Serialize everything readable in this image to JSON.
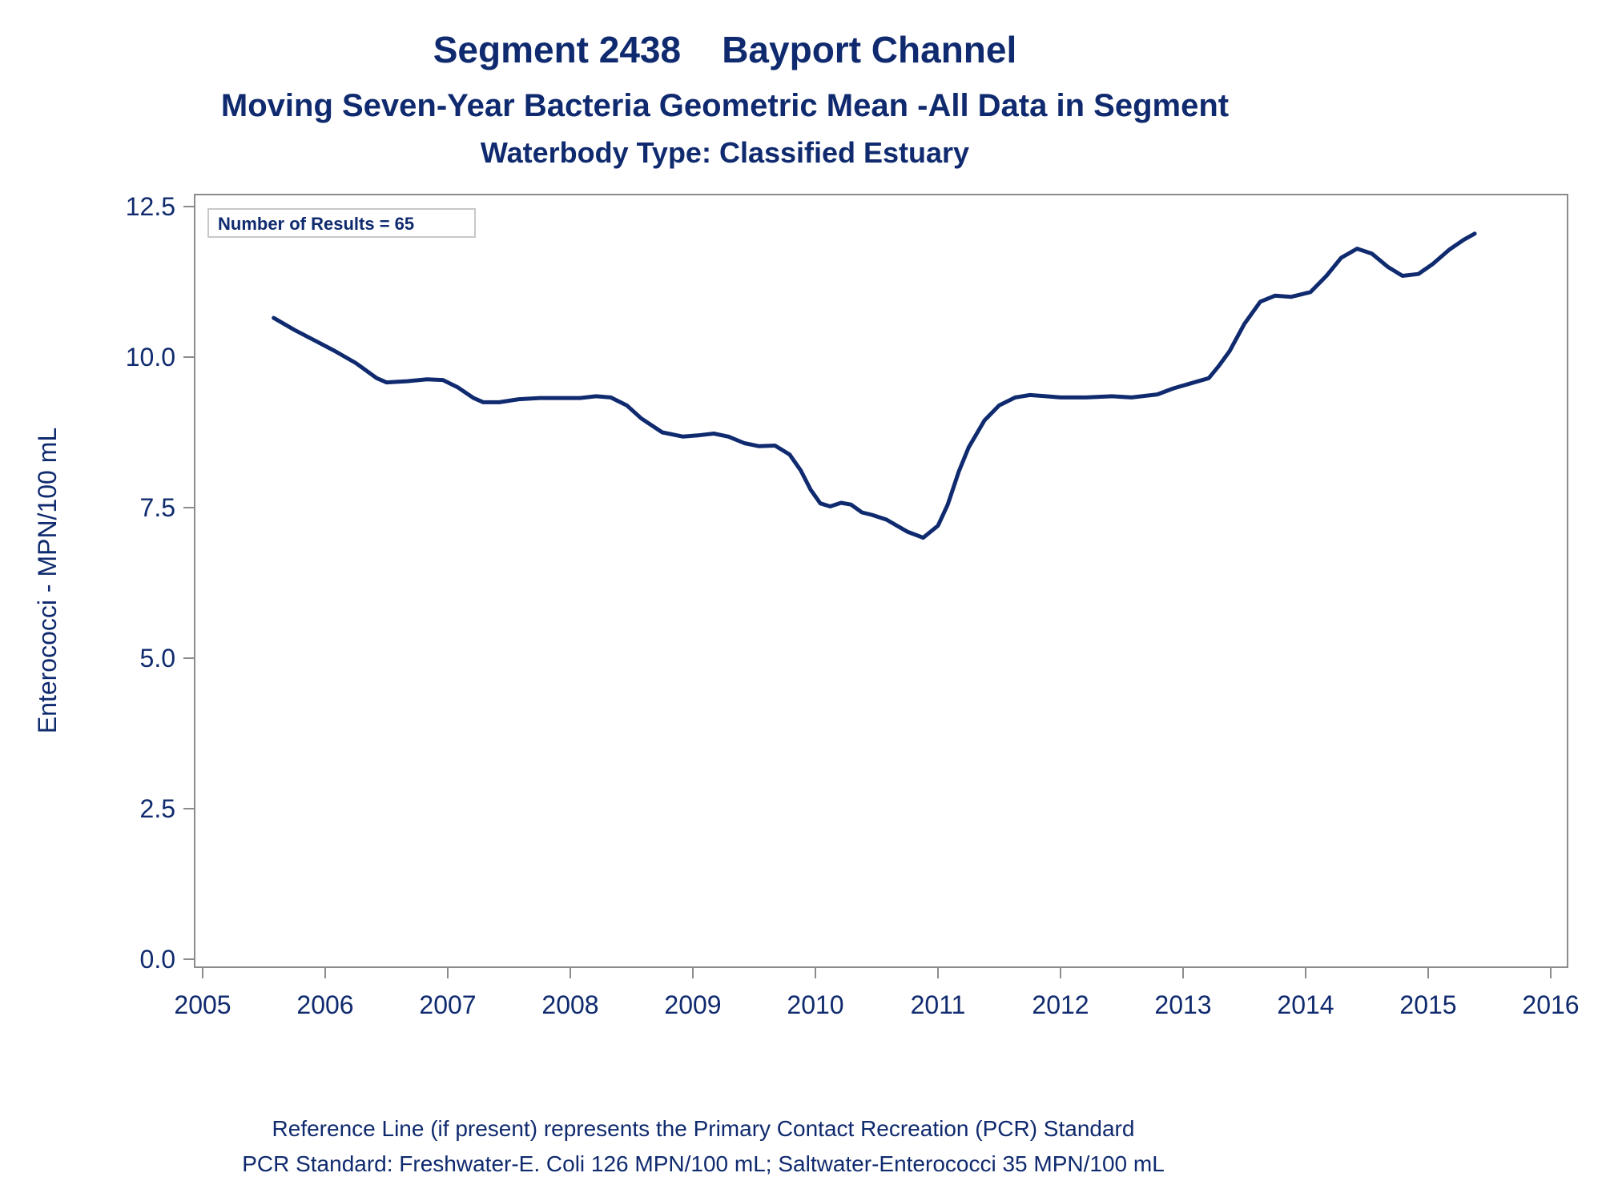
{
  "chart_data": {
    "type": "line",
    "title": "Segment 2438    Bayport Channel",
    "subtitle": "Moving Seven-Year Bacteria Geometric Mean -All Data in Segment",
    "subtitle2": "Waterbody Type: Classified Estuary",
    "xlabel": "",
    "ylabel": "Enterococci - MPN/100 mL",
    "xlim": [
      2005,
      2016
    ],
    "ylim": [
      0,
      12.5
    ],
    "x_ticks": [
      "2005",
      "2006",
      "2007",
      "2008",
      "2009",
      "2010",
      "2011",
      "2012",
      "2013",
      "2014",
      "2015",
      "2016"
    ],
    "y_ticks": [
      "0.0",
      "2.5",
      "5.0",
      "7.5",
      "10.0",
      "12.5"
    ],
    "annotation": "Number of Results = 65",
    "grid": false,
    "line_color": "#0f2a6e",
    "series": [
      {
        "x": [
          2005.58,
          2005.75,
          2005.92,
          2006.08,
          2006.25,
          2006.42,
          2006.5,
          2006.67,
          2006.83,
          2006.96,
          2007.08,
          2007.21,
          2007.29,
          2007.42,
          2007.58,
          2007.75,
          2007.92,
          2008.08,
          2008.21,
          2008.33,
          2008.46,
          2008.58,
          2008.75,
          2008.92,
          2009.04,
          2009.17,
          2009.29,
          2009.42,
          2009.54,
          2009.67,
          2009.79,
          2009.88,
          2009.96,
          2010.04,
          2010.12,
          2010.21,
          2010.29,
          2010.38,
          2010.46,
          2010.58,
          2010.75,
          2010.88,
          2011.0,
          2011.08,
          2011.17,
          2011.25,
          2011.38,
          2011.5,
          2011.63,
          2011.75,
          2011.88,
          2012.0,
          2012.21,
          2012.42,
          2012.58,
          2012.79,
          2012.92,
          2013.04,
          2013.21,
          2013.29,
          2013.38,
          2013.5,
          2013.63,
          2013.75,
          2013.88,
          2014.04,
          2014.17,
          2014.29,
          2014.42,
          2014.54,
          2014.67,
          2014.79,
          2014.92,
          2015.04,
          2015.17,
          2015.29,
          2015.38
        ],
        "values": [
          10.65,
          10.45,
          10.27,
          10.1,
          9.9,
          9.65,
          9.58,
          9.6,
          9.63,
          9.62,
          9.5,
          9.32,
          9.25,
          9.25,
          9.3,
          9.32,
          9.32,
          9.32,
          9.35,
          9.33,
          9.2,
          8.98,
          8.75,
          8.68,
          8.7,
          8.73,
          8.68,
          8.57,
          8.52,
          8.53,
          8.38,
          8.12,
          7.8,
          7.57,
          7.52,
          7.58,
          7.55,
          7.42,
          7.38,
          7.3,
          7.1,
          7.0,
          7.2,
          7.55,
          8.1,
          8.5,
          8.95,
          9.2,
          9.33,
          9.37,
          9.35,
          9.33,
          9.33,
          9.35,
          9.33,
          9.38,
          9.48,
          9.55,
          9.65,
          9.85,
          10.1,
          10.55,
          10.92,
          11.02,
          11.0,
          11.08,
          11.35,
          11.65,
          11.8,
          11.72,
          11.5,
          11.35,
          11.38,
          11.55,
          11.78,
          11.95,
          12.05
        ]
      }
    ],
    "footnote1": "Reference Line (if present) represents the Primary Contact Recreation (PCR) Standard",
    "footnote2": "PCR Standard: Freshwater-E. Coli 126 MPN/100 mL; Saltwater-Enterococci 35 MPN/100 mL"
  }
}
